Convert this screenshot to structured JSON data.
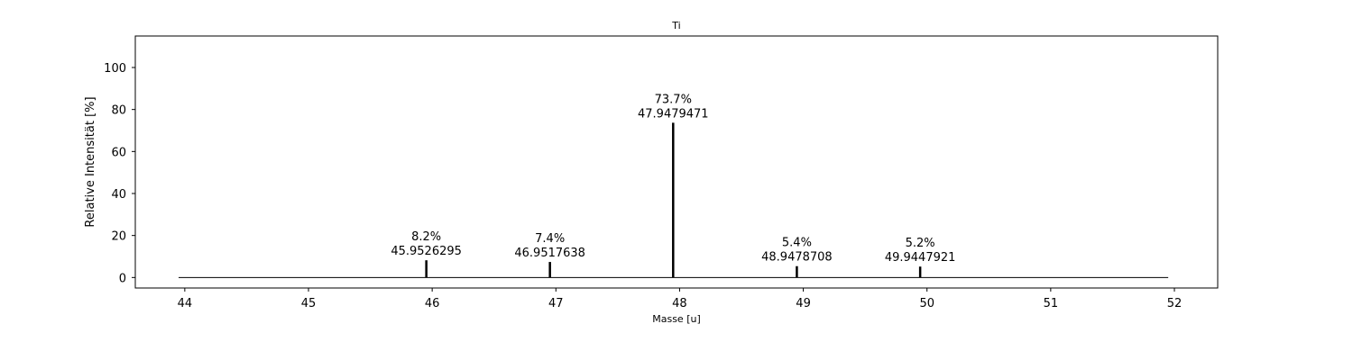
{
  "chart_data": {
    "type": "bar",
    "title": "Ti",
    "xlabel": "Masse [u]",
    "ylabel": "Relative Intensität [%]",
    "xlim": [
      43.6,
      52.35
    ],
    "ylim": [
      -5,
      115
    ],
    "xticks": [
      44,
      45,
      46,
      47,
      48,
      49,
      50,
      51,
      52
    ],
    "yticks": [
      0,
      20,
      40,
      60,
      80,
      100
    ],
    "baseline": [
      43.95,
      51.95
    ],
    "peaks": [
      {
        "mass": 45.9526295,
        "intensity": 8.2,
        "percent_label": "8.2%",
        "mass_label": "45.9526295"
      },
      {
        "mass": 46.9517638,
        "intensity": 7.4,
        "percent_label": "7.4%",
        "mass_label": "46.9517638"
      },
      {
        "mass": 47.9479471,
        "intensity": 73.7,
        "percent_label": "73.7%",
        "mass_label": "47.9479471"
      },
      {
        "mass": 48.9478708,
        "intensity": 5.4,
        "percent_label": "5.4%",
        "mass_label": "48.9478708"
      },
      {
        "mass": 49.9447921,
        "intensity": 5.2,
        "percent_label": "5.2%",
        "mass_label": "49.9447921"
      }
    ],
    "grid": false,
    "colors": {
      "line": "#000000",
      "background": "#ffffff"
    }
  }
}
